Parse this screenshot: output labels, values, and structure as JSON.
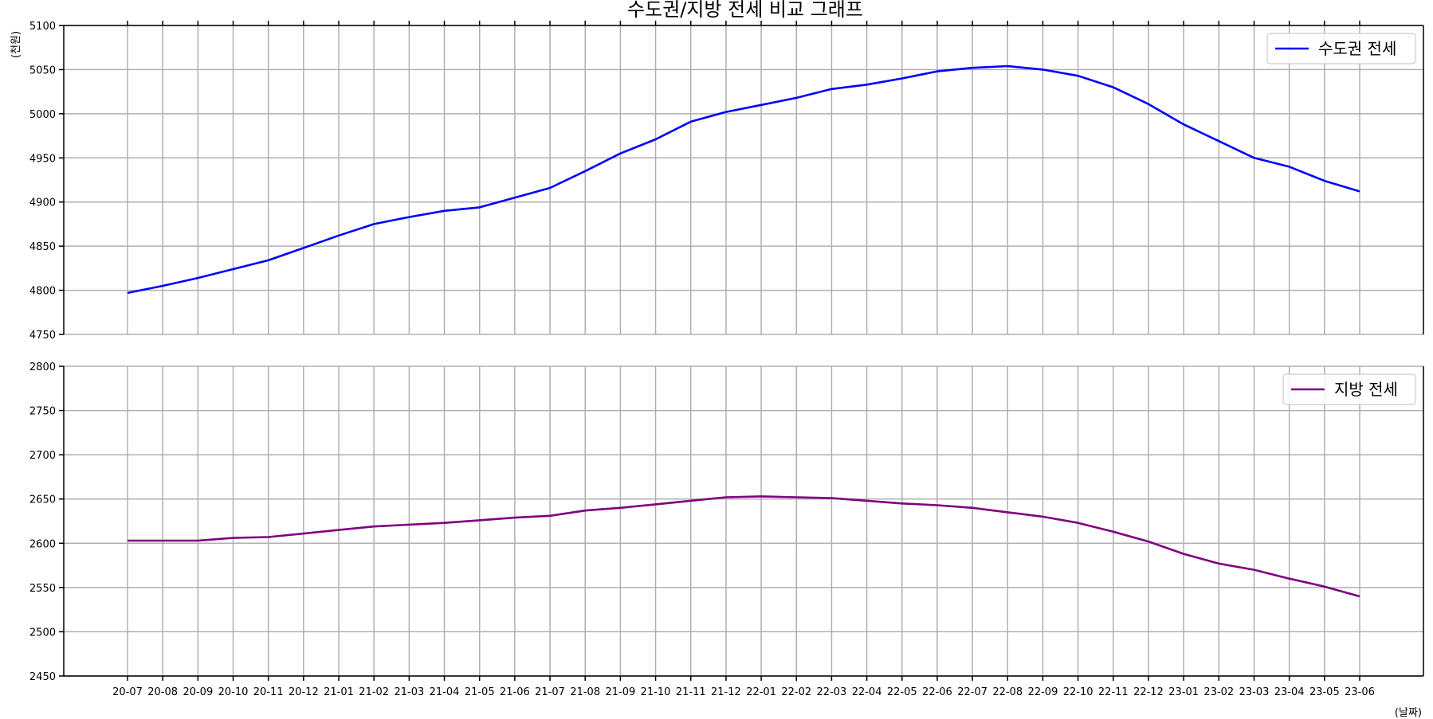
{
  "chart_data": {
    "type": "line",
    "title": "수도권/지방 전세 비교 그래프",
    "ylabel": "(천원)",
    "xlabel": "(날짜)",
    "categories": [
      "20-07",
      "20-08",
      "20-09",
      "20-10",
      "20-11",
      "20-12",
      "21-01",
      "21-02",
      "21-03",
      "21-04",
      "21-05",
      "21-06",
      "21-07",
      "21-08",
      "21-09",
      "21-10",
      "21-11",
      "21-12",
      "22-01",
      "22-02",
      "22-03",
      "22-04",
      "22-05",
      "22-06",
      "22-07",
      "22-08",
      "22-09",
      "22-10",
      "22-11",
      "22-12",
      "23-01",
      "23-02",
      "23-03",
      "23-04",
      "23-05",
      "23-06"
    ],
    "grid": true,
    "panels": [
      {
        "ylim": [
          4750,
          5100
        ],
        "yticks": [
          "4750",
          "4800",
          "4850",
          "4900",
          "4950",
          "5000",
          "5050",
          "5100"
        ],
        "legend_position": "top-right",
        "series": [
          {
            "name": "수도권 전세",
            "color": "#0000ff",
            "values": [
              4797,
              4805,
              4814,
              4824,
              4834,
              4848,
              4862,
              4875,
              4883,
              4890,
              4894,
              4905,
              4916,
              4935,
              4955,
              4971,
              4991,
              5002,
              5010,
              5018,
              5028,
              5033,
              5040,
              5048,
              5052,
              5054,
              5050,
              5043,
              5030,
              5011,
              4988,
              4969,
              4950,
              4940,
              4924,
              4912
            ]
          }
        ]
      },
      {
        "ylim": [
          2450,
          2800
        ],
        "yticks": [
          "2450",
          "2500",
          "2550",
          "2600",
          "2650",
          "2700",
          "2750",
          "2800"
        ],
        "legend_position": "top-right",
        "series": [
          {
            "name": "지방 전세",
            "color": "#800080",
            "values": [
              2603,
              2603,
              2603,
              2606,
              2607,
              2611,
              2615,
              2619,
              2621,
              2623,
              2626,
              2629,
              2631,
              2637,
              2640,
              2644,
              2648,
              2652,
              2653,
              2652,
              2651,
              2648,
              2645,
              2643,
              2640,
              2635,
              2630,
              2623,
              2613,
              2602,
              2588,
              2577,
              2570,
              2560,
              2551,
              2540
            ]
          }
        ]
      }
    ]
  }
}
